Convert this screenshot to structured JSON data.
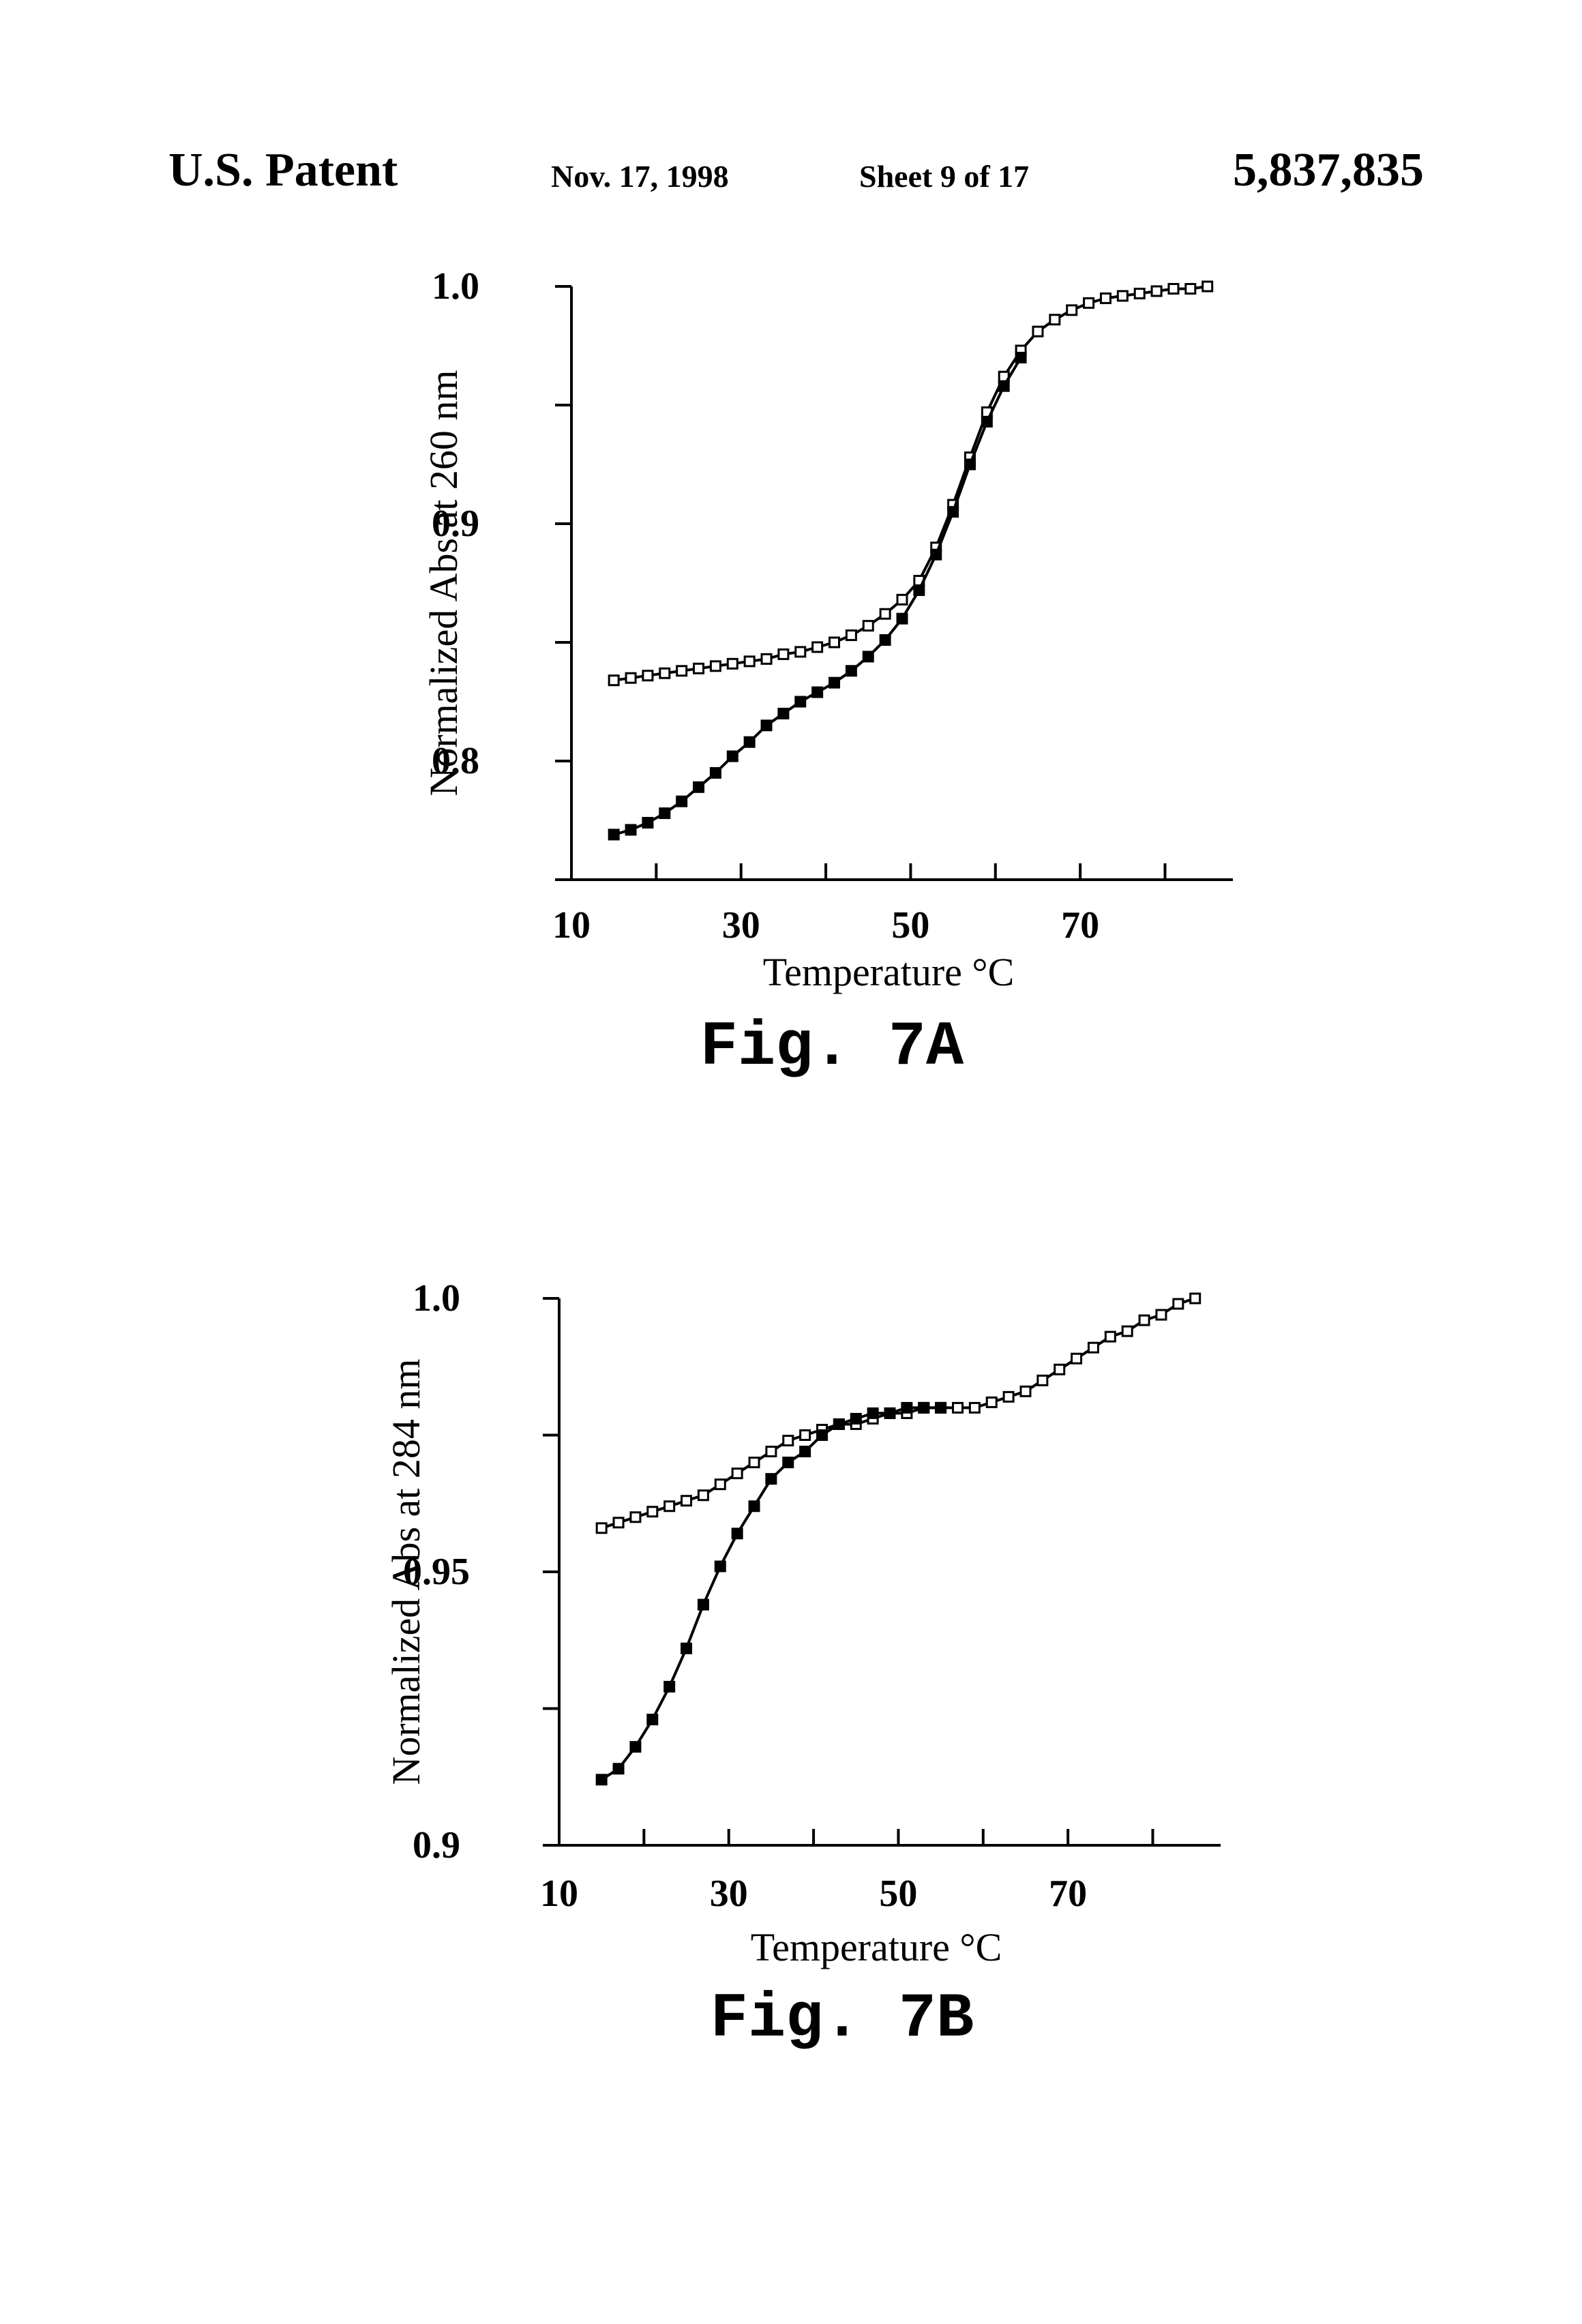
{
  "header": {
    "left": "U.S. Patent",
    "date": "Nov. 17, 1998",
    "sheet": "Sheet 9 of 17",
    "number": "5,837,835"
  },
  "chart_data": [
    {
      "type": "line",
      "figure_label": "Fig. 7A",
      "title": "",
      "xlabel": "Temperature °C",
      "ylabel": "Normalized Abs at 260 nm",
      "xlim": [
        10,
        88
      ],
      "ylim": [
        0.75,
        1.0
      ],
      "x_ticks": [
        10,
        30,
        50,
        70
      ],
      "y_ticks": [
        0.8,
        0.9,
        1.0
      ],
      "y_ticks_labeled": [
        "0.8",
        "0.9",
        "1.0"
      ],
      "x_ticks_labeled": [
        "10",
        "30",
        "50",
        "70"
      ],
      "grid": false,
      "legend": "none",
      "series": [
        {
          "marker": "open-square",
          "points": [
            [
              15,
              0.834
            ],
            [
              17,
              0.835
            ],
            [
              19,
              0.836
            ],
            [
              21,
              0.837
            ],
            [
              23,
              0.838
            ],
            [
              25,
              0.839
            ],
            [
              27,
              0.84
            ],
            [
              29,
              0.841
            ],
            [
              31,
              0.842
            ],
            [
              33,
              0.843
            ],
            [
              35,
              0.845
            ],
            [
              37,
              0.846
            ],
            [
              39,
              0.848
            ],
            [
              41,
              0.85
            ],
            [
              43,
              0.853
            ],
            [
              45,
              0.857
            ],
            [
              47,
              0.862
            ],
            [
              49,
              0.868
            ],
            [
              51,
              0.876
            ],
            [
              53,
              0.89
            ],
            [
              55,
              0.908
            ],
            [
              57,
              0.928
            ],
            [
              59,
              0.947
            ],
            [
              61,
              0.962
            ],
            [
              63,
              0.973
            ],
            [
              65,
              0.981
            ],
            [
              67,
              0.986
            ],
            [
              69,
              0.99
            ],
            [
              71,
              0.993
            ],
            [
              73,
              0.995
            ],
            [
              75,
              0.996
            ],
            [
              77,
              0.997
            ],
            [
              79,
              0.998
            ],
            [
              81,
              0.999
            ],
            [
              83,
              0.999
            ],
            [
              85,
              1.0
            ]
          ]
        },
        {
          "marker": "filled-square",
          "points": [
            [
              15,
              0.769
            ],
            [
              17,
              0.771
            ],
            [
              19,
              0.774
            ],
            [
              21,
              0.778
            ],
            [
              23,
              0.783
            ],
            [
              25,
              0.789
            ],
            [
              27,
              0.795
            ],
            [
              29,
              0.802
            ],
            [
              31,
              0.808
            ],
            [
              33,
              0.815
            ],
            [
              35,
              0.82
            ],
            [
              37,
              0.825
            ],
            [
              39,
              0.829
            ],
            [
              41,
              0.833
            ],
            [
              43,
              0.838
            ],
            [
              45,
              0.844
            ],
            [
              47,
              0.851
            ],
            [
              49,
              0.86
            ],
            [
              51,
              0.872
            ],
            [
              53,
              0.887
            ],
            [
              55,
              0.905
            ],
            [
              57,
              0.925
            ],
            [
              59,
              0.943
            ],
            [
              61,
              0.958
            ],
            [
              63,
              0.97
            ]
          ]
        }
      ]
    },
    {
      "type": "line",
      "figure_label": "Fig. 7B",
      "title": "",
      "xlabel": "Temperature °C",
      "ylabel": "Normalized Abs at 284 nm",
      "xlim": [
        10,
        88
      ],
      "ylim": [
        0.9,
        1.0
      ],
      "x_ticks": [
        10,
        30,
        50,
        70
      ],
      "y_ticks": [
        0.9,
        0.95,
        1.0
      ],
      "y_ticks_labeled": [
        "0.9",
        "0.95",
        "1.0"
      ],
      "x_ticks_labeled": [
        "10",
        "30",
        "50",
        "70"
      ],
      "grid": false,
      "legend": "none",
      "series": [
        {
          "marker": "open-square",
          "points": [
            [
              15,
              0.958
            ],
            [
              17,
              0.959
            ],
            [
              19,
              0.96
            ],
            [
              21,
              0.961
            ],
            [
              23,
              0.962
            ],
            [
              25,
              0.963
            ],
            [
              27,
              0.964
            ],
            [
              29,
              0.966
            ],
            [
              31,
              0.968
            ],
            [
              33,
              0.97
            ],
            [
              35,
              0.972
            ],
            [
              37,
              0.974
            ],
            [
              39,
              0.975
            ],
            [
              41,
              0.976
            ],
            [
              43,
              0.977
            ],
            [
              45,
              0.977
            ],
            [
              47,
              0.978
            ],
            [
              49,
              0.979
            ],
            [
              51,
              0.979
            ],
            [
              53,
              0.98
            ],
            [
              55,
              0.98
            ],
            [
              57,
              0.98
            ],
            [
              59,
              0.98
            ],
            [
              61,
              0.981
            ],
            [
              63,
              0.982
            ],
            [
              65,
              0.983
            ],
            [
              67,
              0.985
            ],
            [
              69,
              0.987
            ],
            [
              71,
              0.989
            ],
            [
              73,
              0.991
            ],
            [
              75,
              0.993
            ],
            [
              77,
              0.994
            ],
            [
              79,
              0.996
            ],
            [
              81,
              0.997
            ],
            [
              83,
              0.999
            ],
            [
              85,
              1.0
            ]
          ]
        },
        {
          "marker": "filled-square",
          "points": [
            [
              15,
              0.912
            ],
            [
              17,
              0.914
            ],
            [
              19,
              0.918
            ],
            [
              21,
              0.923
            ],
            [
              23,
              0.929
            ],
            [
              25,
              0.936
            ],
            [
              27,
              0.944
            ],
            [
              29,
              0.951
            ],
            [
              31,
              0.957
            ],
            [
              33,
              0.962
            ],
            [
              35,
              0.967
            ],
            [
              37,
              0.97
            ],
            [
              39,
              0.972
            ],
            [
              41,
              0.975
            ],
            [
              43,
              0.977
            ],
            [
              45,
              0.978
            ],
            [
              47,
              0.979
            ],
            [
              49,
              0.979
            ],
            [
              51,
              0.98
            ],
            [
              53,
              0.98
            ],
            [
              55,
              0.98
            ]
          ]
        }
      ]
    }
  ]
}
